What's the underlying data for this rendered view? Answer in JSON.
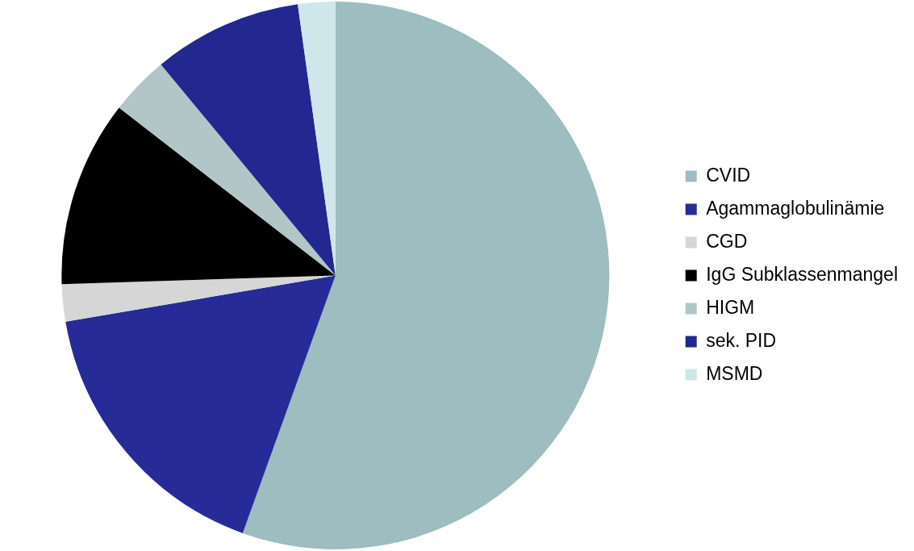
{
  "chart_data": {
    "type": "pie",
    "categories": [
      "CVID",
      "Agammaglobulinämie",
      "CGD",
      "IgG Subklassenmangel",
      "HIGM",
      "sek. PID",
      "MSMD"
    ],
    "values": [
      55.5,
      16.8,
      2.2,
      11,
      3.5,
      8.8,
      2.2
    ],
    "colors": [
      "#9dbdc0",
      "#262b97",
      "#d6d6d6",
      "#000000",
      "#b2c6c8",
      "#22288f",
      "#cfe6ea"
    ],
    "legend": "right"
  }
}
